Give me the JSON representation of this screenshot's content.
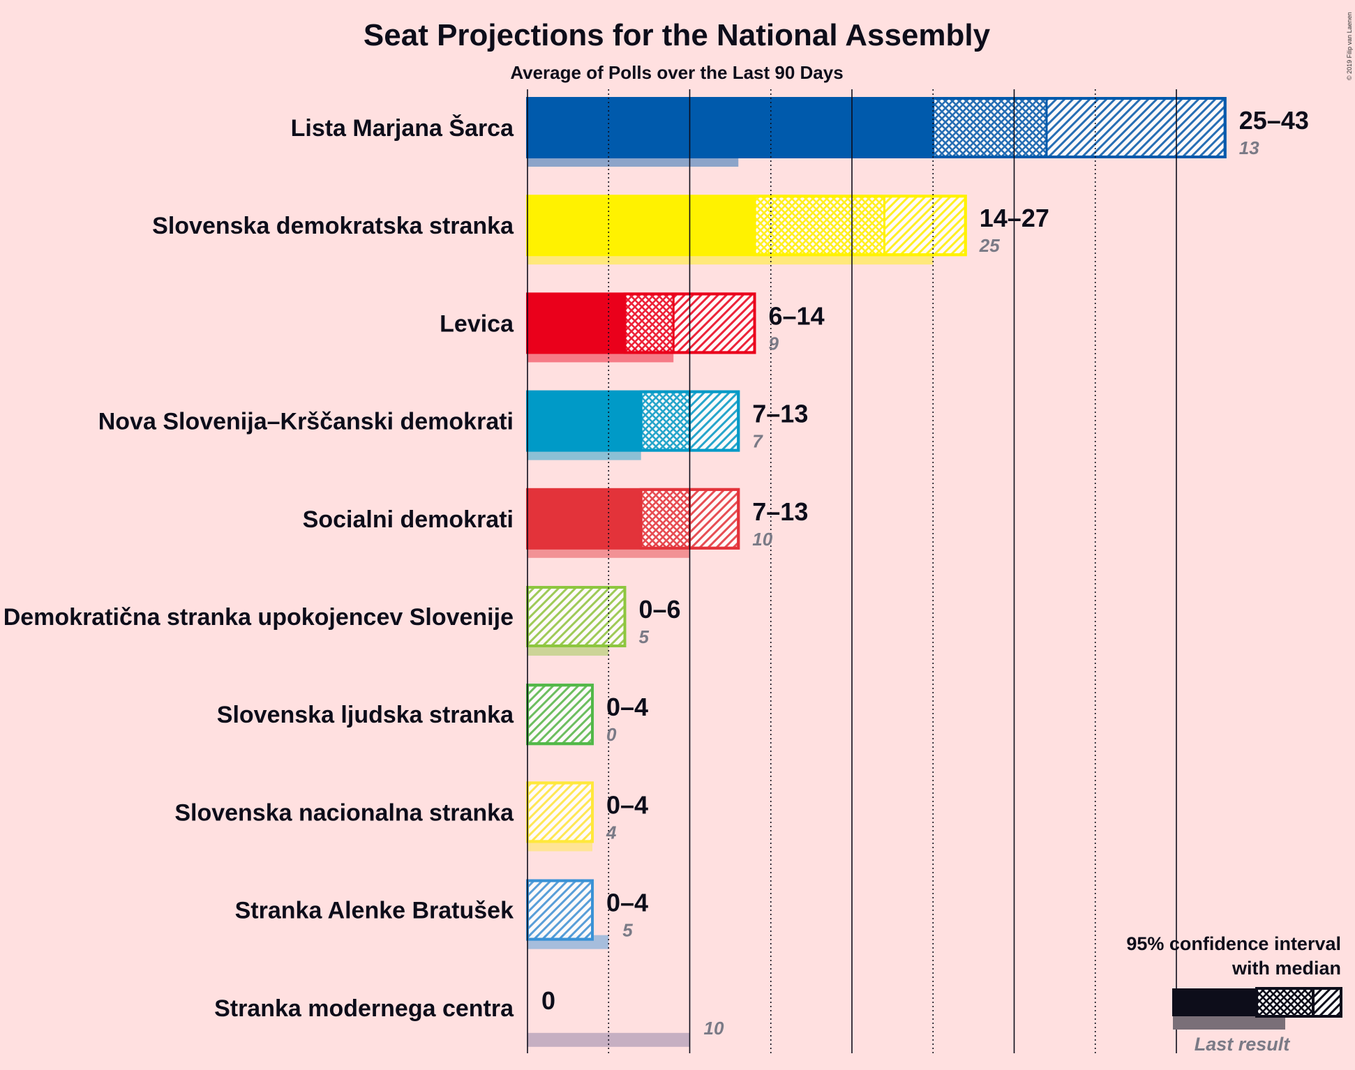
{
  "chart_data": {
    "type": "bar",
    "title": "Seat Projections for the National Assembly",
    "subtitle": "Average of Polls over the Last 90 Days",
    "copyright": "© 2019 Filip van Laenen",
    "xlim": [
      0,
      43
    ],
    "series": [
      {
        "name": "Lista Marjana Šarca",
        "low": 25,
        "median": 32,
        "high": 43,
        "range_label": "25–43",
        "last_result": 13,
        "last_label": "13",
        "color": "#005aac"
      },
      {
        "name": "Slovenska demokratska stranka",
        "low": 14,
        "median": 22,
        "high": 27,
        "range_label": "14–27",
        "last_result": 25,
        "last_label": "25",
        "color": "#fff200"
      },
      {
        "name": "Levica",
        "low": 6,
        "median": 9,
        "high": 14,
        "range_label": "6–14",
        "last_result": 9,
        "last_label": "9",
        "color": "#ea001b"
      },
      {
        "name": "Nova Slovenija–Krščanski demokrati",
        "low": 7,
        "median": 10,
        "high": 13,
        "range_label": "7–13",
        "last_result": 7,
        "last_label": "7",
        "color": "#009ac7"
      },
      {
        "name": "Socialni demokrati",
        "low": 7,
        "median": 10,
        "high": 13,
        "range_label": "7–13",
        "last_result": 10,
        "last_label": "10",
        "color": "#e3333a"
      },
      {
        "name": "Demokratična stranka upokojencev Slovenije",
        "low": 0,
        "median": 0,
        "high": 6,
        "range_label": "0–6",
        "last_result": 5,
        "last_label": "5",
        "color": "#8dc63f"
      },
      {
        "name": "Slovenska ljudska stranka",
        "low": 0,
        "median": 0,
        "high": 4,
        "range_label": "0–4",
        "last_result": 0,
        "last_label": "0",
        "color": "#52b848"
      },
      {
        "name": "Slovenska nacionalna stranka",
        "low": 0,
        "median": 0,
        "high": 4,
        "range_label": "0–4",
        "last_result": 4,
        "last_label": "4",
        "color": "#ffe83b"
      },
      {
        "name": "Stranka Alenke Bratušek",
        "low": 0,
        "median": 0,
        "high": 4,
        "range_label": "0–4",
        "last_result": 5,
        "last_label": "5",
        "color": "#3a92d6"
      },
      {
        "name": "Stranka modernega centra",
        "low": 0,
        "median": 0,
        "high": 0,
        "range_label": "0",
        "last_result": 10,
        "last_label": "10",
        "color": "#80749e"
      }
    ],
    "gridlines": {
      "solid": [
        0,
        10,
        20,
        30,
        40
      ],
      "dotted": [
        5,
        15,
        25,
        35
      ]
    },
    "legend": {
      "line1": "95% confidence interval",
      "line2": "with median",
      "last_result": "Last result",
      "placement": "bottom-right"
    }
  }
}
